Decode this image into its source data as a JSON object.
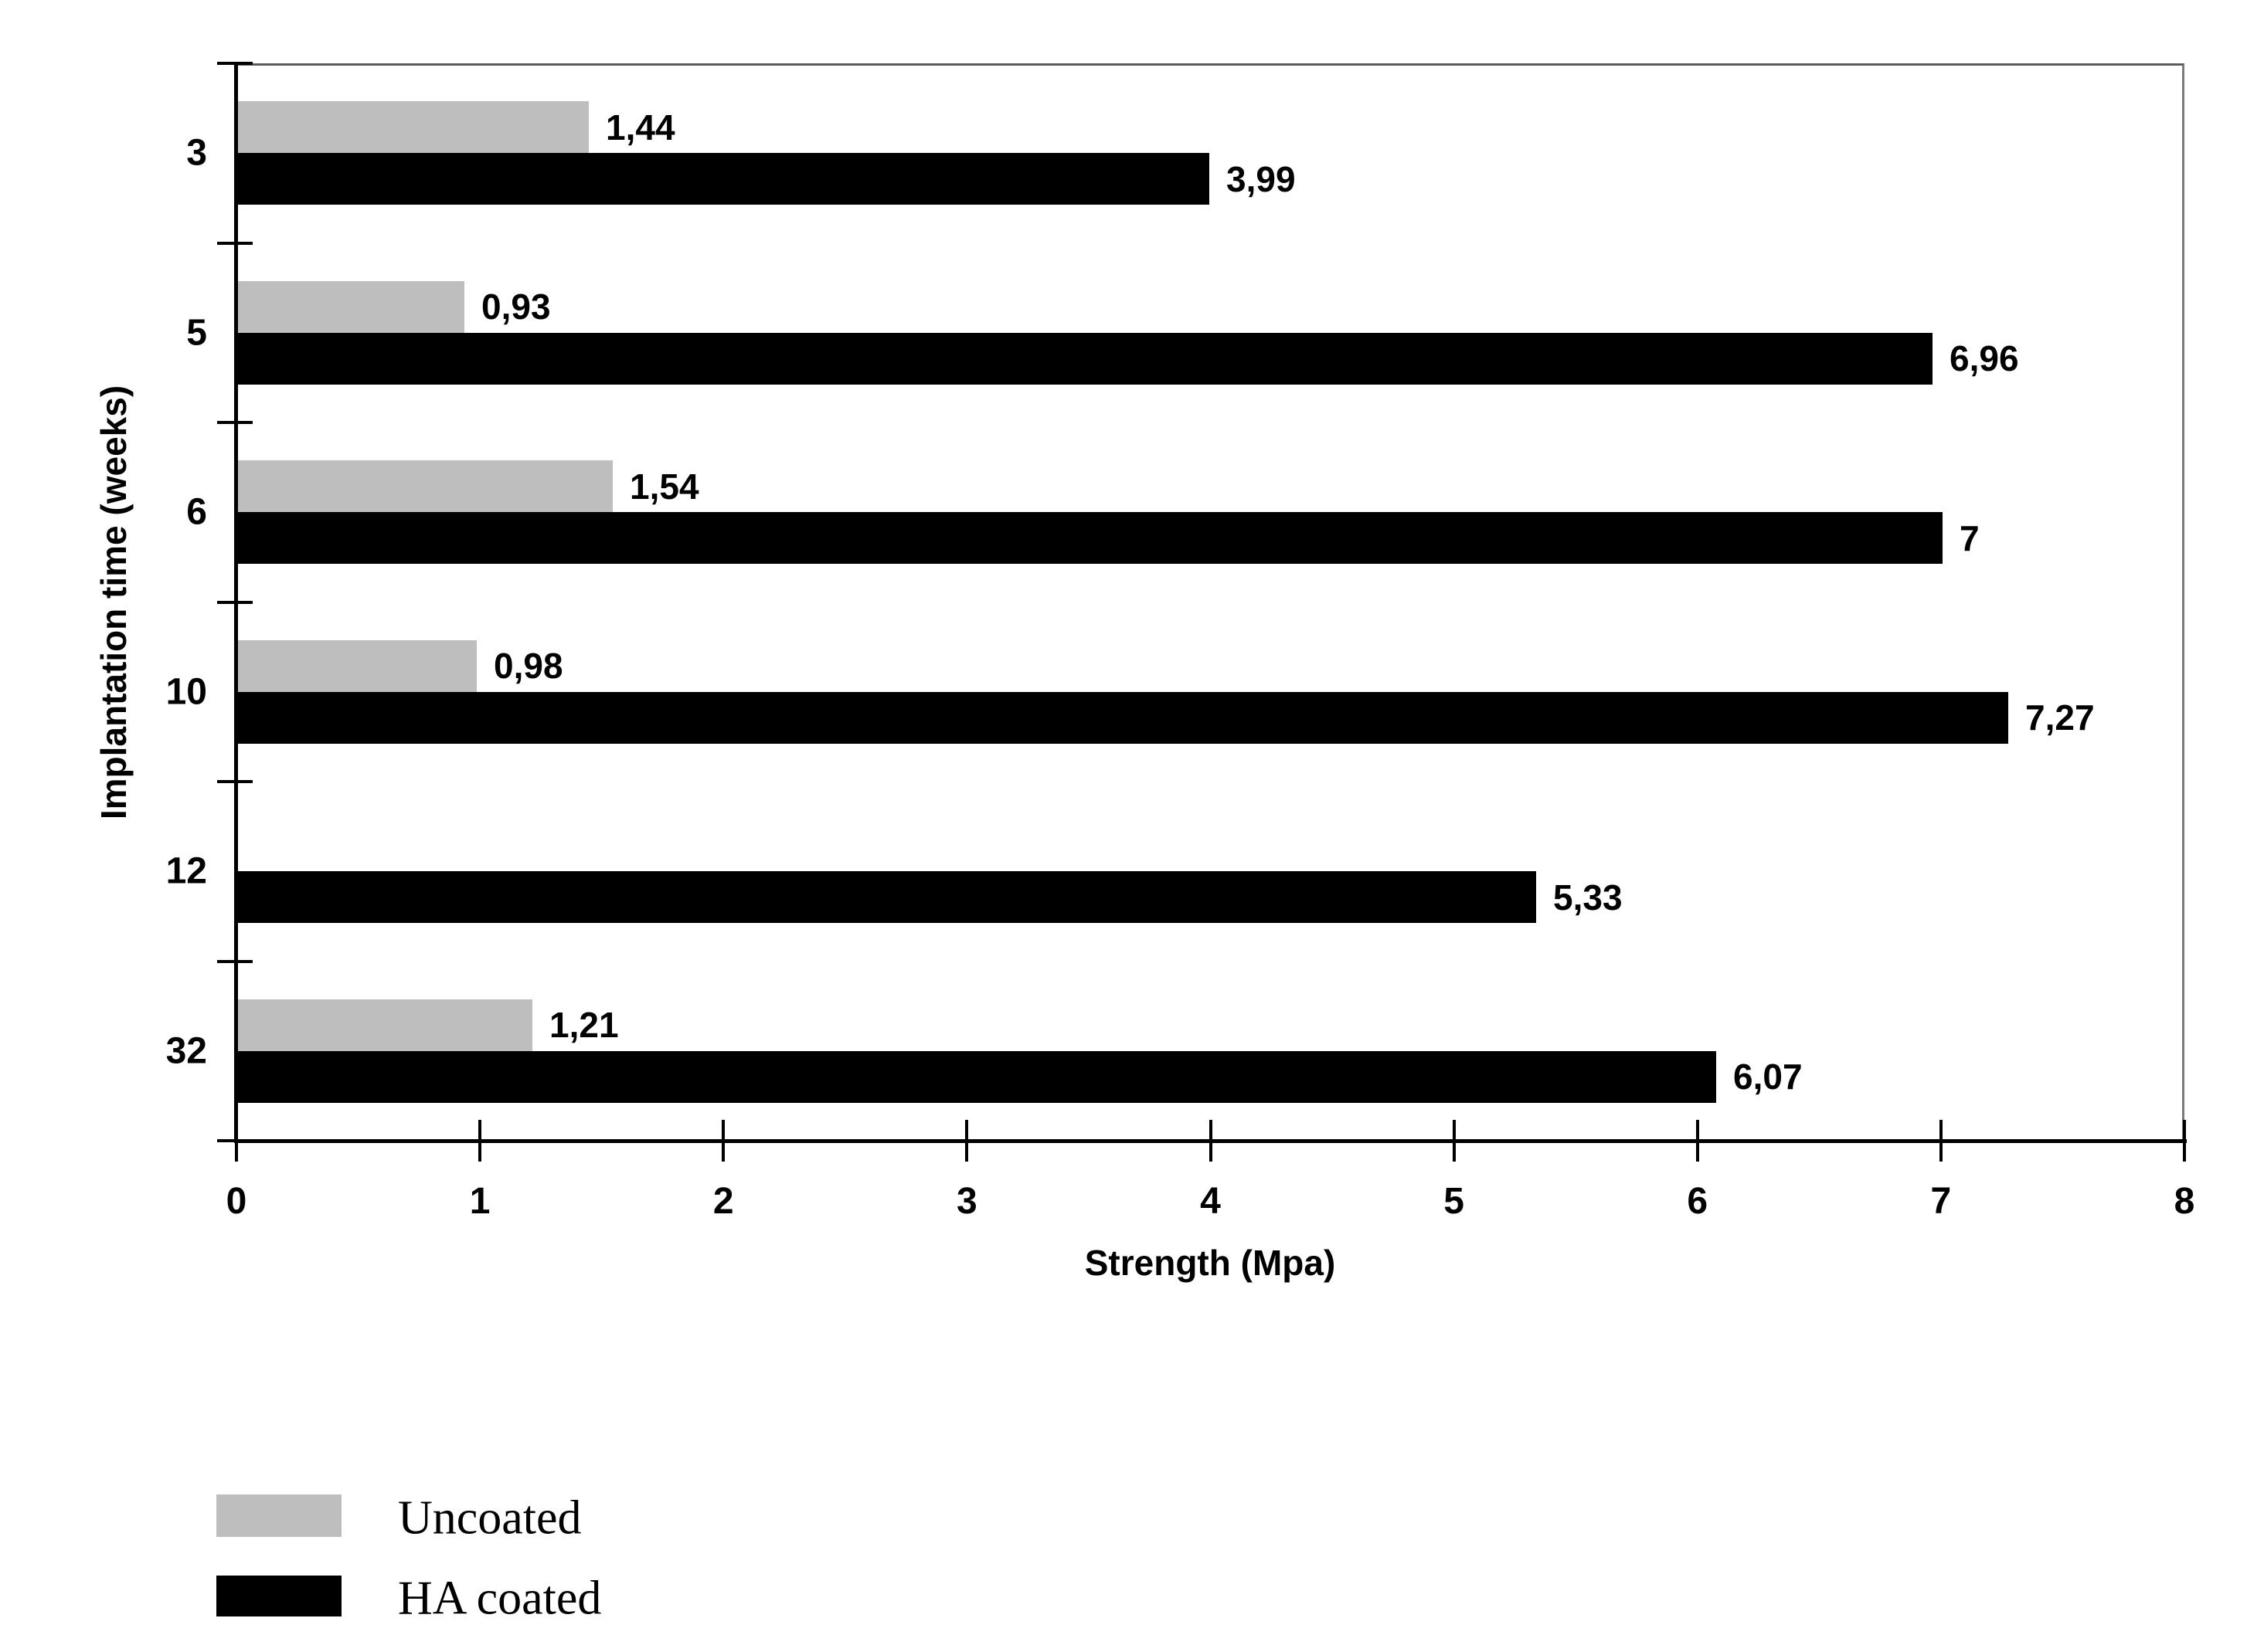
{
  "chart_data": {
    "type": "bar",
    "orientation": "horizontal",
    "xlabel": "Strength (Mpa)",
    "ylabel": "Implantation time (weeks)",
    "xlim": [
      0,
      8
    ],
    "x_ticks": [
      "0",
      "1",
      "2",
      "3",
      "4",
      "5",
      "6",
      "7",
      "8"
    ],
    "categories": [
      "3",
      "5",
      "6",
      "10",
      "12",
      "32"
    ],
    "series": [
      {
        "name": "Uncoated",
        "color": "#bebebe",
        "values": [
          1.44,
          0.93,
          1.54,
          0.98,
          null,
          1.21
        ],
        "labels": [
          "1,44",
          "0,93",
          "1,54",
          "0,98",
          null,
          "1,21"
        ]
      },
      {
        "name": "HA coated",
        "color": "#000000",
        "values": [
          3.99,
          6.96,
          7.0,
          7.27,
          5.33,
          6.07
        ],
        "labels": [
          "3,99",
          "6,96",
          "7",
          "7,27",
          "5,33",
          "6,07"
        ]
      }
    ],
    "legend": [
      {
        "label": "Uncoated",
        "color": "#bebebe"
      },
      {
        "label": "HA coated",
        "color": "#000000"
      }
    ],
    "grid": false,
    "legend_position": "bottom-left"
  },
  "colors": {
    "background": "#ffffff",
    "axis": "#000000",
    "frame": "#7a7a7a",
    "uncoated_bar": "#bebebe",
    "ha_coated_bar": "#000000"
  }
}
